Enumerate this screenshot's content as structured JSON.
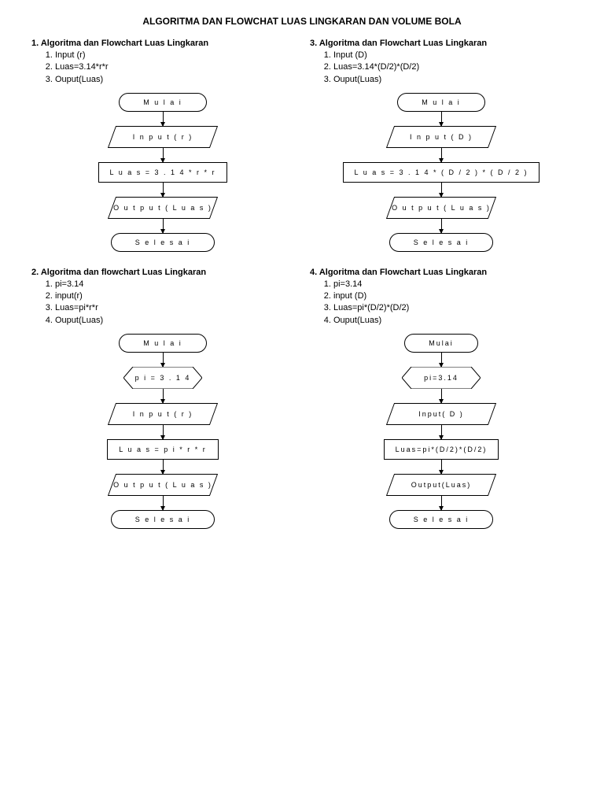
{
  "title": "ALGORITMA DAN FLOWCHAT LUAS LINGKARAN DAN VOLUME BOLA",
  "style": {
    "border_color": "#000000",
    "background": "#ffffff",
    "font_family": "Arial",
    "title_fontsize": 12,
    "body_fontsize": 11,
    "shape_fontsize": 9,
    "letter_spacing": 2
  },
  "sections": [
    {
      "heading": "1. Algoritma dan Flowchart Luas Lingkaran",
      "steps": [
        "Input (r)",
        "Luas=3.14*r*r",
        "Ouput(Luas)"
      ],
      "flow": [
        {
          "type": "terminator",
          "label": "M u l a i"
        },
        {
          "type": "io",
          "label": "I n p u t ( r )"
        },
        {
          "type": "process",
          "label": "L u a s = 3 . 1 4 * r * r"
        },
        {
          "type": "io",
          "label": "O u t p u t ( L u a s )"
        },
        {
          "type": "terminator",
          "label": "S e l e s a i"
        }
      ]
    },
    {
      "heading": "3. Algoritma dan Flowchart Luas Lingkaran",
      "steps": [
        "Input (D)",
        "Luas=3.14*(D/2)*(D/2)",
        "Ouput(Luas)"
      ],
      "flow": [
        {
          "type": "terminator",
          "label": "M u l a i"
        },
        {
          "type": "io",
          "label": "I n p u t ( D )"
        },
        {
          "type": "process",
          "label": "L u a s = 3 . 1 4 * ( D / 2 ) * ( D / 2 )"
        },
        {
          "type": "io",
          "label": "O u t p u t ( L u a s )"
        },
        {
          "type": "terminator",
          "label": "S e l e s a i"
        }
      ]
    },
    {
      "heading": "2. Algoritma dan flowchart Luas Lingkaran",
      "steps": [
        "pi=3.14",
        "input(r)",
        "Luas=pi*r*r",
        "Ouput(Luas)"
      ],
      "flow": [
        {
          "type": "terminator",
          "label": "M u l a i"
        },
        {
          "type": "prep",
          "label": "p i = 3 . 1 4"
        },
        {
          "type": "io",
          "label": "I n p u t ( r )"
        },
        {
          "type": "process",
          "label": "L u a s = p i * r * r"
        },
        {
          "type": "io",
          "label": "O u t p u t ( L u a s )"
        },
        {
          "type": "terminator",
          "label": "S e l e s a i"
        }
      ]
    },
    {
      "heading": "4. Algoritma dan Flowchart Luas Lingkaran",
      "steps": [
        "pi=3.14",
        "input (D)",
        "Luas=pi*(D/2)*(D/2)",
        "Ouput(Luas)"
      ],
      "flow": [
        {
          "type": "terminator",
          "label": "Mulai"
        },
        {
          "type": "prep",
          "label": "pi=3.14"
        },
        {
          "type": "io",
          "label": "Input( D )"
        },
        {
          "type": "process",
          "label": "Luas=pi*(D/2)*(D/2)"
        },
        {
          "type": "io",
          "label": "Output(Luas)"
        },
        {
          "type": "terminator",
          "label": "S e l e s a i"
        }
      ]
    }
  ]
}
